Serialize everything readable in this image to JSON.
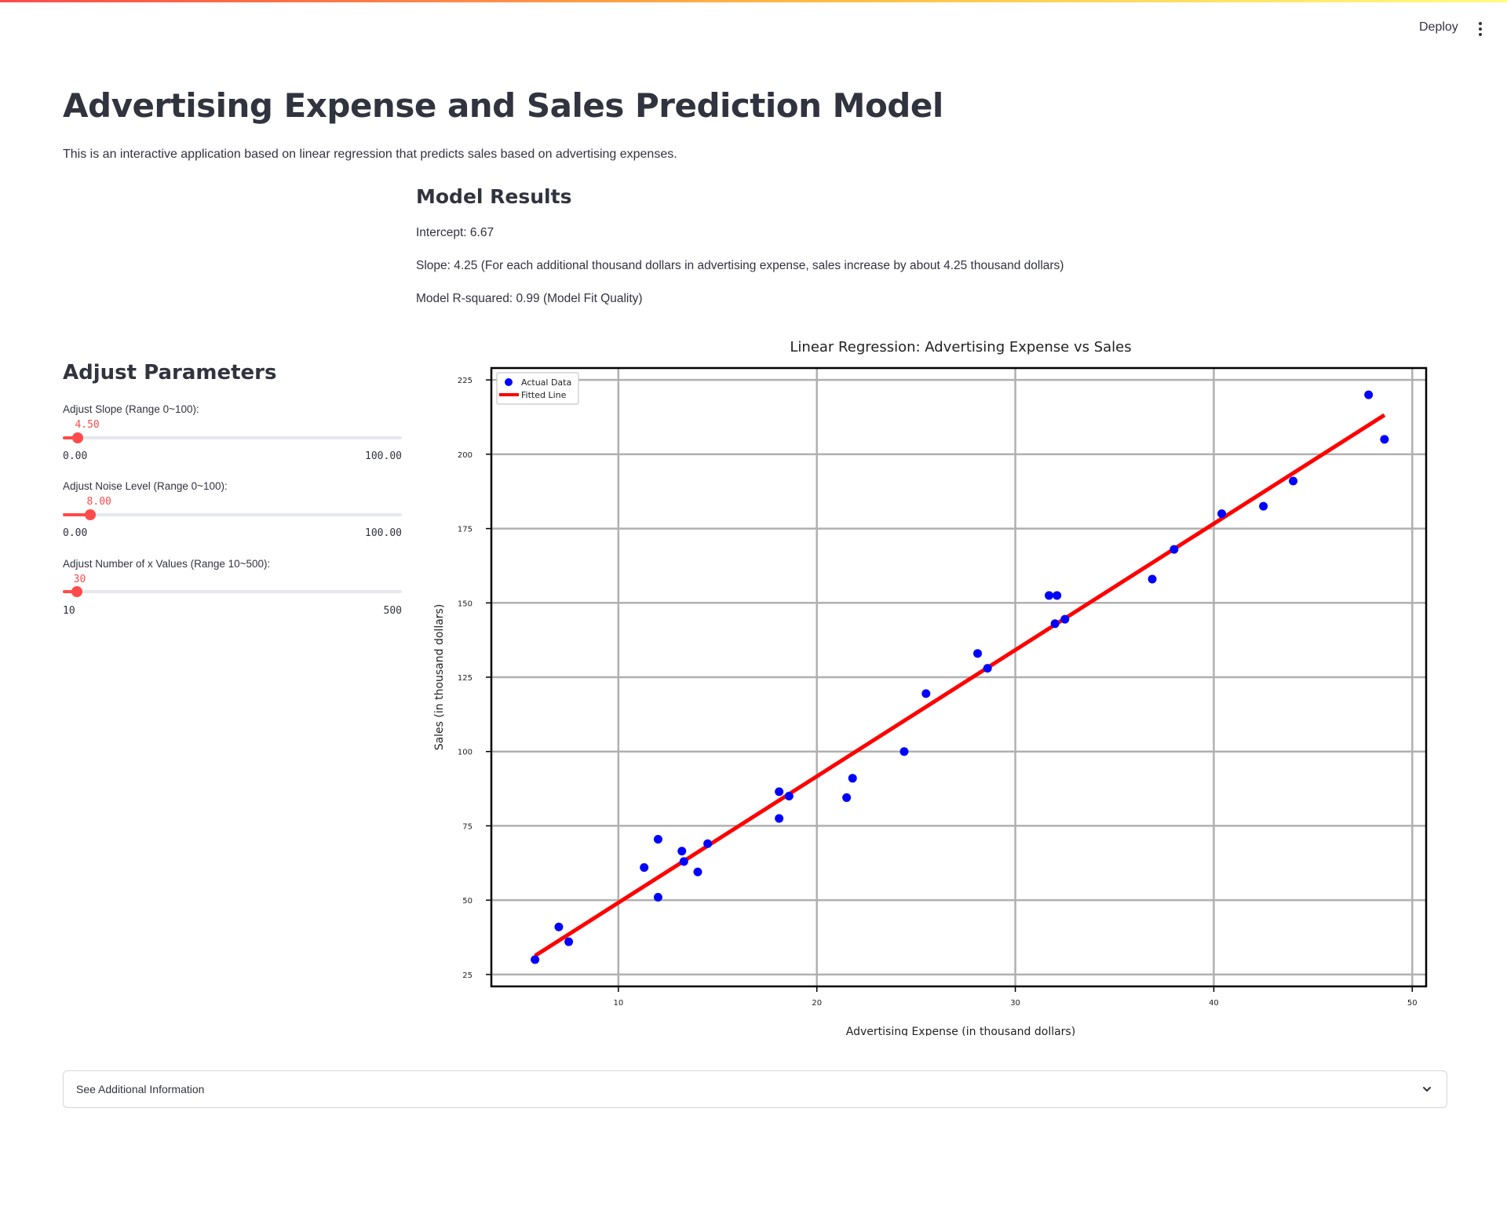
{
  "header": {
    "deploy_label": "Deploy",
    "menu_icon": "more-vertical-icon",
    "accent_color": "#ff4b4b"
  },
  "page": {
    "title": "Advertising Expense and Sales Prediction Model",
    "intro": "This is an interactive application based on linear regression that predicts sales based on advertising expenses."
  },
  "results": {
    "heading": "Model Results",
    "intercept": "Intercept: 6.67",
    "slope": "Slope: 4.25 (For each additional thousand dollars in advertising expense, sales increase by about 4.25 thousand dollars)",
    "r_squared": "Model R-squared: 0.99 (Model Fit Quality)"
  },
  "params": {
    "heading": "Adjust Parameters",
    "sliders": [
      {
        "label": "Adjust Slope (Range 0~100):",
        "value": 4.5,
        "value_text": "4.50",
        "min": 0,
        "max": 100,
        "min_text": "0.00",
        "max_text": "100.00"
      },
      {
        "label": "Adjust Noise Level (Range 0~100):",
        "value": 8.0,
        "value_text": "8.00",
        "min": 0,
        "max": 100,
        "min_text": "0.00",
        "max_text": "100.00"
      },
      {
        "label": "Adjust Number of x Values (Range 10~500):",
        "value": 30,
        "value_text": "30",
        "min": 10,
        "max": 500,
        "min_text": "10",
        "max_text": "500"
      }
    ]
  },
  "chart_data": {
    "type": "scatter",
    "title": "Linear Regression: Advertising Expense vs Sales",
    "xlabel": "Advertising Expense (in thousand dollars)",
    "ylabel": "Sales (in thousand dollars)",
    "xlim": [
      3.6,
      50.7
    ],
    "ylim": [
      21,
      229
    ],
    "x_ticks": [
      10,
      20,
      30,
      40,
      50
    ],
    "y_ticks": [
      25,
      50,
      75,
      100,
      125,
      150,
      175,
      200,
      225
    ],
    "grid": true,
    "legend_position": "top-left",
    "series": [
      {
        "name": "Actual Data",
        "kind": "scatter",
        "color": "#0000ff",
        "points": [
          [
            5.8,
            30.0
          ],
          [
            7.0,
            41.0
          ],
          [
            7.5,
            36.0
          ],
          [
            11.3,
            61.0
          ],
          [
            12.0,
            70.5
          ],
          [
            12.0,
            51.0
          ],
          [
            13.2,
            66.5
          ],
          [
            13.3,
            63.0
          ],
          [
            14.0,
            59.5
          ],
          [
            14.5,
            69.0
          ],
          [
            18.1,
            86.5
          ],
          [
            18.1,
            77.5
          ],
          [
            18.6,
            85.0
          ],
          [
            21.5,
            84.5
          ],
          [
            21.8,
            91.0
          ],
          [
            24.4,
            100.0
          ],
          [
            25.5,
            119.5
          ],
          [
            28.1,
            133.0
          ],
          [
            28.6,
            128.0
          ],
          [
            31.7,
            152.5
          ],
          [
            32.0,
            143.0
          ],
          [
            32.1,
            152.5
          ],
          [
            32.5,
            144.5
          ],
          [
            36.9,
            158.0
          ],
          [
            38.0,
            168.0
          ],
          [
            40.4,
            180.0
          ],
          [
            42.5,
            182.5
          ],
          [
            44.0,
            191.0
          ],
          [
            47.8,
            220.0
          ],
          [
            48.6,
            205.0
          ]
        ]
      },
      {
        "name": "Fitted Line",
        "kind": "line",
        "color": "#ff0000",
        "points": [
          [
            5.8,
            31.3
          ],
          [
            48.6,
            213.2
          ]
        ]
      }
    ]
  },
  "expander": {
    "label": "See Additional Information",
    "icon": "chevron-down-icon"
  }
}
